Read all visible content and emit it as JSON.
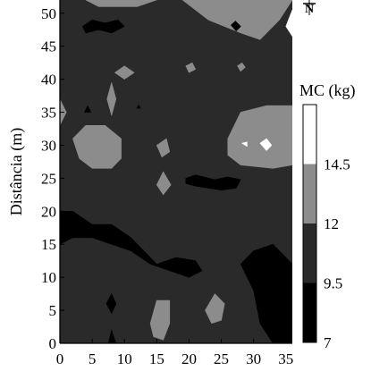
{
  "chart_data": {
    "type": "filled-contour",
    "ylabel": "Distância (m)",
    "xlabel": "",
    "xlim": [
      0,
      36
    ],
    "ylim": [
      0,
      52
    ],
    "x_ticks": [
      "0",
      "5",
      "10",
      "15",
      "20",
      "25",
      "30",
      "35"
    ],
    "y_ticks": [
      "0",
      "5",
      "10",
      "15",
      "20",
      "25",
      "30",
      "35",
      "40",
      "45",
      "50"
    ],
    "x_tick_values": [
      0,
      5,
      10,
      15,
      20,
      25,
      30,
      35
    ],
    "y_tick_values": [
      0,
      5,
      10,
      15,
      20,
      25,
      30,
      35,
      40,
      45,
      50
    ],
    "colorbar": {
      "title": "MC (kg)",
      "levels": [
        7,
        9.5,
        12,
        14.5
      ],
      "level_labels": [
        "7",
        "9.5",
        "12",
        "14.5"
      ],
      "vmax": 17,
      "colors": [
        "#000000",
        "#2a2a2a",
        "#8c8c8c",
        "#ffffff"
      ]
    },
    "regions": [
      {
        "level": "9.5-12",
        "polygon": [
          [
            0,
            0
          ],
          [
            36,
            0
          ],
          [
            36,
            52
          ],
          [
            0,
            52
          ]
        ]
      },
      {
        "level": "12-14.5",
        "polygon": [
          [
            4,
            52
          ],
          [
            6,
            51
          ],
          [
            12,
            51
          ],
          [
            15,
            52
          ]
        ]
      },
      {
        "level": "12-14.5",
        "polygon": [
          [
            19,
            52
          ],
          [
            23,
            49
          ],
          [
            28,
            47
          ],
          [
            31,
            46
          ],
          [
            34,
            49
          ],
          [
            36,
            52
          ]
        ]
      },
      {
        "level": "12-14.5",
        "polygon": [
          [
            0,
            37
          ],
          [
            1,
            35
          ],
          [
            0,
            33
          ]
        ]
      },
      {
        "level": "12-14.5",
        "polygon": [
          [
            8.5,
            41
          ],
          [
            10,
            42
          ],
          [
            11.5,
            41
          ],
          [
            10,
            40
          ]
        ]
      },
      {
        "level": "12-14.5",
        "polygon": [
          [
            19.5,
            42
          ],
          [
            20.5,
            42.5
          ],
          [
            21,
            41.5
          ],
          [
            20,
            41
          ]
        ]
      },
      {
        "level": "12-14.5",
        "polygon": [
          [
            27.5,
            42
          ],
          [
            28.2,
            42.5
          ],
          [
            28.7,
            41.8
          ],
          [
            28,
            41.2
          ]
        ]
      },
      {
        "level": "12-14.5",
        "polygon": [
          [
            7.3,
            37
          ],
          [
            8,
            39.5
          ],
          [
            8.7,
            37
          ],
          [
            8,
            34.5
          ]
        ]
      },
      {
        "level": "12-14.5",
        "polygon": [
          [
            2,
            31
          ],
          [
            4,
            33
          ],
          [
            7,
            33
          ],
          [
            9.5,
            31
          ],
          [
            9.5,
            28
          ],
          [
            8,
            26.5
          ],
          [
            5,
            26.5
          ],
          [
            3,
            28
          ]
        ]
      },
      {
        "level": "12-14.5",
        "polygon": [
          [
            15,
            30
          ],
          [
            16.5,
            31
          ],
          [
            17,
            29
          ],
          [
            15.8,
            28.2
          ]
        ]
      },
      {
        "level": "12-14.5",
        "polygon": [
          [
            15,
            24
          ],
          [
            16,
            26
          ],
          [
            17.2,
            24
          ],
          [
            16,
            22.5
          ]
        ]
      },
      {
        "level": "12-14.5",
        "polygon": [
          [
            26,
            31
          ],
          [
            28,
            35
          ],
          [
            32,
            36
          ],
          [
            36,
            36
          ],
          [
            36,
            27
          ],
          [
            33,
            26.5
          ],
          [
            28,
            27
          ],
          [
            26,
            28.5
          ]
        ]
      },
      {
        "level": "12-14.5",
        "polygon": [
          [
            22.5,
            5
          ],
          [
            24,
            7.5
          ],
          [
            25.5,
            6
          ],
          [
            25,
            3.5
          ],
          [
            23.5,
            3
          ]
        ]
      },
      {
        "level": "12-14.5",
        "polygon": [
          [
            14,
            3
          ],
          [
            15,
            6.5
          ],
          [
            17,
            6.5
          ],
          [
            17,
            3
          ],
          [
            16,
            0.5
          ],
          [
            14.5,
            1
          ]
        ]
      },
      {
        "level": ">14.5",
        "polygon": [
          [
            35,
            48
          ],
          [
            36,
            50.5
          ],
          [
            36,
            46.5
          ]
        ]
      },
      {
        "level": ">14.5",
        "polygon": [
          [
            28.2,
            30.3
          ],
          [
            29,
            30.5
          ],
          [
            29,
            29.8
          ]
        ]
      },
      {
        "level": ">14.5",
        "polygon": [
          [
            31,
            30.3
          ],
          [
            32,
            31
          ],
          [
            32.8,
            30
          ],
          [
            32,
            29.2
          ]
        ]
      },
      {
        "level": "7-9.5",
        "polygon": [
          [
            0,
            20
          ],
          [
            2,
            20
          ],
          [
            5,
            18
          ],
          [
            8,
            18
          ],
          [
            11,
            16
          ],
          [
            13,
            14
          ],
          [
            15,
            12
          ],
          [
            18,
            13
          ],
          [
            21,
            12.5
          ],
          [
            22,
            11
          ],
          [
            20,
            10
          ],
          [
            17,
            11
          ],
          [
            14,
            12
          ],
          [
            11,
            14
          ],
          [
            8,
            15
          ],
          [
            5,
            16
          ],
          [
            2,
            16
          ],
          [
            0,
            15
          ]
        ]
      },
      {
        "level": "7-9.5",
        "polygon": [
          [
            28,
            12
          ],
          [
            30,
            14
          ],
          [
            33,
            15
          ],
          [
            36,
            12
          ],
          [
            36,
            0
          ],
          [
            33,
            0
          ],
          [
            31,
            3
          ],
          [
            30,
            8
          ]
        ]
      },
      {
        "level": "7-9.5",
        "polygon": [
          [
            3.5,
            48
          ],
          [
            5,
            49
          ],
          [
            7,
            48.5
          ],
          [
            9,
            49
          ],
          [
            10,
            48
          ],
          [
            8,
            47
          ],
          [
            6,
            47.5
          ],
          [
            4,
            47
          ]
        ]
      },
      {
        "level": "7-9.5",
        "polygon": [
          [
            26.5,
            48.2
          ],
          [
            27.2,
            48.8
          ],
          [
            28,
            48
          ],
          [
            27.3,
            47.3
          ]
        ]
      },
      {
        "level": "7-9.5",
        "polygon": [
          [
            19.5,
            25
          ],
          [
            21,
            25.5
          ],
          [
            24,
            24.8
          ],
          [
            26,
            25.2
          ],
          [
            28,
            24.8
          ],
          [
            27.3,
            23.5
          ],
          [
            25,
            23.2
          ],
          [
            23,
            23.5
          ],
          [
            21,
            23.8
          ],
          [
            19.5,
            24.2
          ]
        ]
      },
      {
        "level": "7-9.5",
        "polygon": [
          [
            7.2,
            6
          ],
          [
            8,
            7.5
          ],
          [
            8.7,
            6
          ],
          [
            8,
            4.5
          ]
        ]
      },
      {
        "level": "7-9.5",
        "polygon": [
          [
            7.5,
            0
          ],
          [
            8,
            2
          ],
          [
            8.7,
            0
          ]
        ]
      },
      {
        "level": "7-9.5",
        "polygon": [
          [
            3.8,
            35
          ],
          [
            4.3,
            36
          ],
          [
            4.8,
            35
          ]
        ]
      },
      {
        "level": "7-9.5",
        "polygon": [
          [
            11.9,
            35.6
          ],
          [
            12.2,
            36.1
          ],
          [
            12.5,
            35.6
          ]
        ]
      }
    ]
  }
}
